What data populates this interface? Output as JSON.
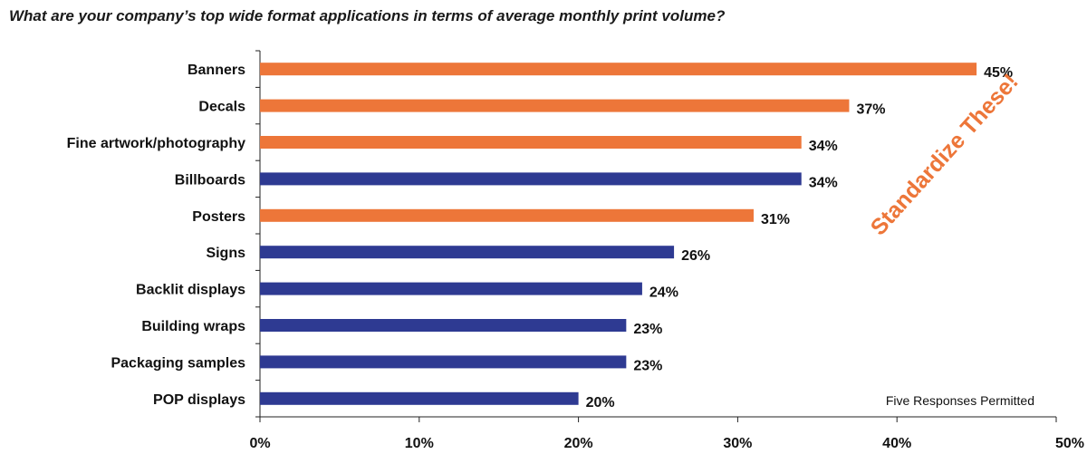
{
  "chart_data": {
    "type": "bar",
    "orientation": "horizontal",
    "title": "What are your company’s top wide format applications in terms of average monthly print volume?",
    "categories": [
      "Banners",
      "Decals",
      "Fine artwork/photography",
      "Billboards",
      "Posters",
      "Signs",
      "Backlit displays",
      "Building wraps",
      "Packaging samples",
      "POP displays"
    ],
    "values": [
      45,
      37,
      34,
      34,
      31,
      26,
      24,
      23,
      23,
      20
    ],
    "value_labels": [
      "45%",
      "37%",
      "34%",
      "34%",
      "31%",
      "26%",
      "24%",
      "23%",
      "23%",
      "20%"
    ],
    "highlighted": [
      true,
      true,
      true,
      false,
      true,
      false,
      false,
      false,
      false,
      false
    ],
    "xlim": [
      0,
      50
    ],
    "xticks": [
      "0%",
      "10%",
      "20%",
      "30%",
      "40%",
      "50%"
    ],
    "xtick_values": [
      0,
      10,
      20,
      30,
      40,
      50
    ],
    "grid": false,
    "annotations": {
      "stamp": "Standardize These!",
      "note": "Five Responses Permitted"
    },
    "colors": {
      "highlight": "#ed7639",
      "default": "#2e3a92",
      "axis": "#222222"
    }
  }
}
